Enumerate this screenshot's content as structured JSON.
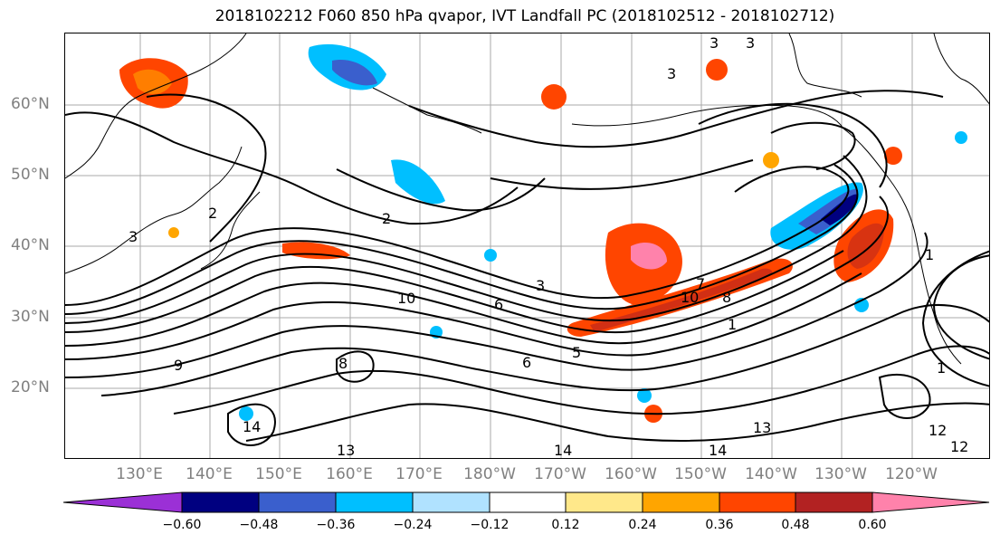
{
  "title": "2018102212 F060 850 hPa qvapor, IVT Landfall PC (2018102512 - 2018102712)",
  "map": {
    "lat_labels": [
      "60°N",
      "50°N",
      "40°N",
      "30°N",
      "20°N"
    ],
    "lon_labels": [
      "130°E",
      "140°E",
      "150°E",
      "160°E",
      "170°E",
      "180°W",
      "170°W",
      "160°W",
      "150°W",
      "140°W",
      "130°W",
      "120°W"
    ],
    "contour_labels": [
      "3",
      "3",
      "3",
      "3",
      "2",
      "2",
      "3",
      "6",
      "10",
      "10",
      "8",
      "7",
      "1",
      "1",
      "9",
      "8",
      "5",
      "6",
      "13",
      "14",
      "14",
      "14",
      "13",
      "12",
      "12",
      "1"
    ]
  },
  "colorbar": {
    "tick_labels": [
      "−0.60",
      "−0.48",
      "−0.36",
      "−0.24",
      "−0.12",
      "0.12",
      "0.24",
      "0.36",
      "0.48",
      "0.60"
    ],
    "colors": [
      "#9b30d6",
      "#000080",
      "#3a5fcd",
      "#00bfff",
      "#b0e2ff",
      "#ffffff",
      "#ffe88a",
      "#ffa500",
      "#ff4500",
      "#b22222",
      "#ff82ab"
    ]
  }
}
